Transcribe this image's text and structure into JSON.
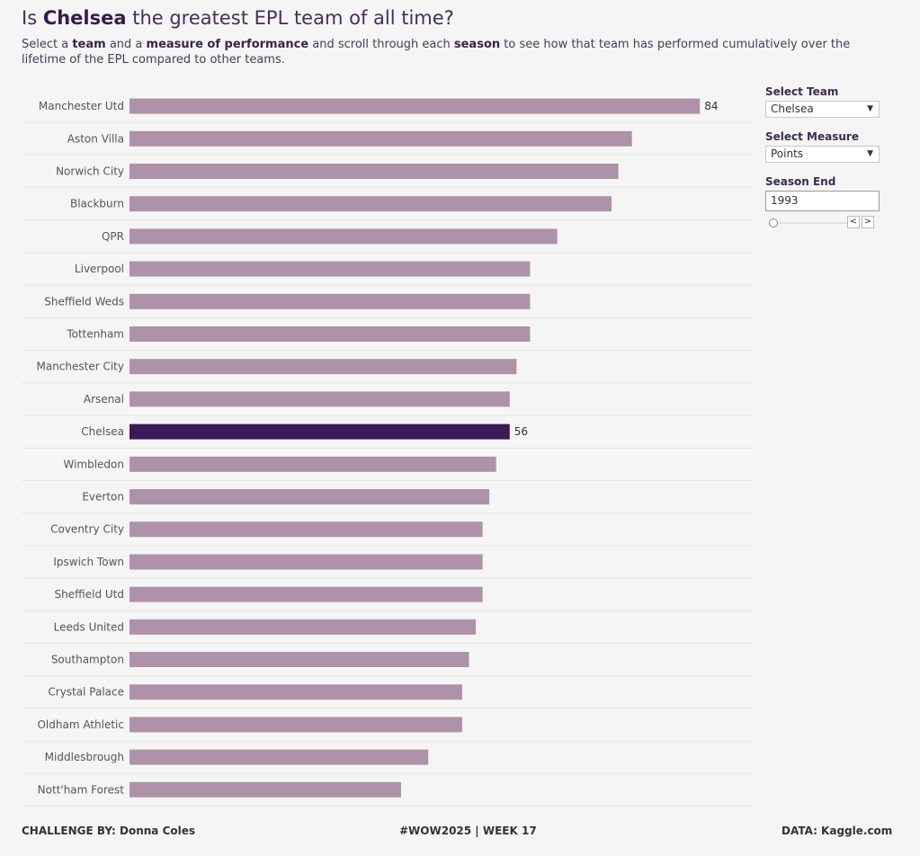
{
  "header": {
    "title_pre": "Is ",
    "title_team": "Chelsea",
    "title_post": " the greatest EPL team of all time?",
    "subtitle_parts": [
      "Select a ",
      "team",
      " and a ",
      "measure of performance",
      " and scroll through each ",
      "season",
      " to see how that team has performed cumulatively over the lifetime of the EPL compared to other teams."
    ]
  },
  "controls": {
    "team_label": "Select Team",
    "team_value": "Chelsea",
    "measure_label": "Select Measure",
    "measure_value": "Points",
    "season_label": "Season End",
    "season_value": "1993",
    "prev_glyph": "<",
    "next_glyph": ">",
    "dropdown_glyph": "▼"
  },
  "footer": {
    "left": "CHALLENGE BY: Donna Coles",
    "center": "#WOW2025 | WEEK 17",
    "right": "DATA: Kaggle.com"
  },
  "colors": {
    "bar": "#ae92aa",
    "highlight": "#3d1a57",
    "row_divider": "#e6e6e6",
    "background": "#f5f5f5"
  },
  "chart_data": {
    "type": "bar",
    "orientation": "horizontal",
    "measure": "Points",
    "categories": [
      "Manchester Utd",
      "Aston Villa",
      "Norwich City",
      "Blackburn",
      "QPR",
      "Liverpool",
      "Sheffield Weds",
      "Tottenham",
      "Manchester City",
      "Arsenal",
      "Chelsea",
      "Wimbledon",
      "Everton",
      "Coventry City",
      "Ipswich Town",
      "Sheffield Utd",
      "Leeds United",
      "Southampton",
      "Crystal Palace",
      "Oldham Athletic",
      "Middlesbrough",
      "Nott'ham Forest"
    ],
    "values": [
      84,
      74,
      72,
      71,
      63,
      59,
      59,
      59,
      57,
      56,
      56,
      54,
      53,
      52,
      52,
      52,
      51,
      50,
      49,
      49,
      44,
      40
    ],
    "highlight": "Chelsea",
    "data_labels": [
      {
        "category": "Manchester Utd",
        "text": "84"
      },
      {
        "category": "Chelsea",
        "text": "56"
      }
    ],
    "xlim": [
      0,
      90
    ],
    "grid": false,
    "legend": "none"
  }
}
